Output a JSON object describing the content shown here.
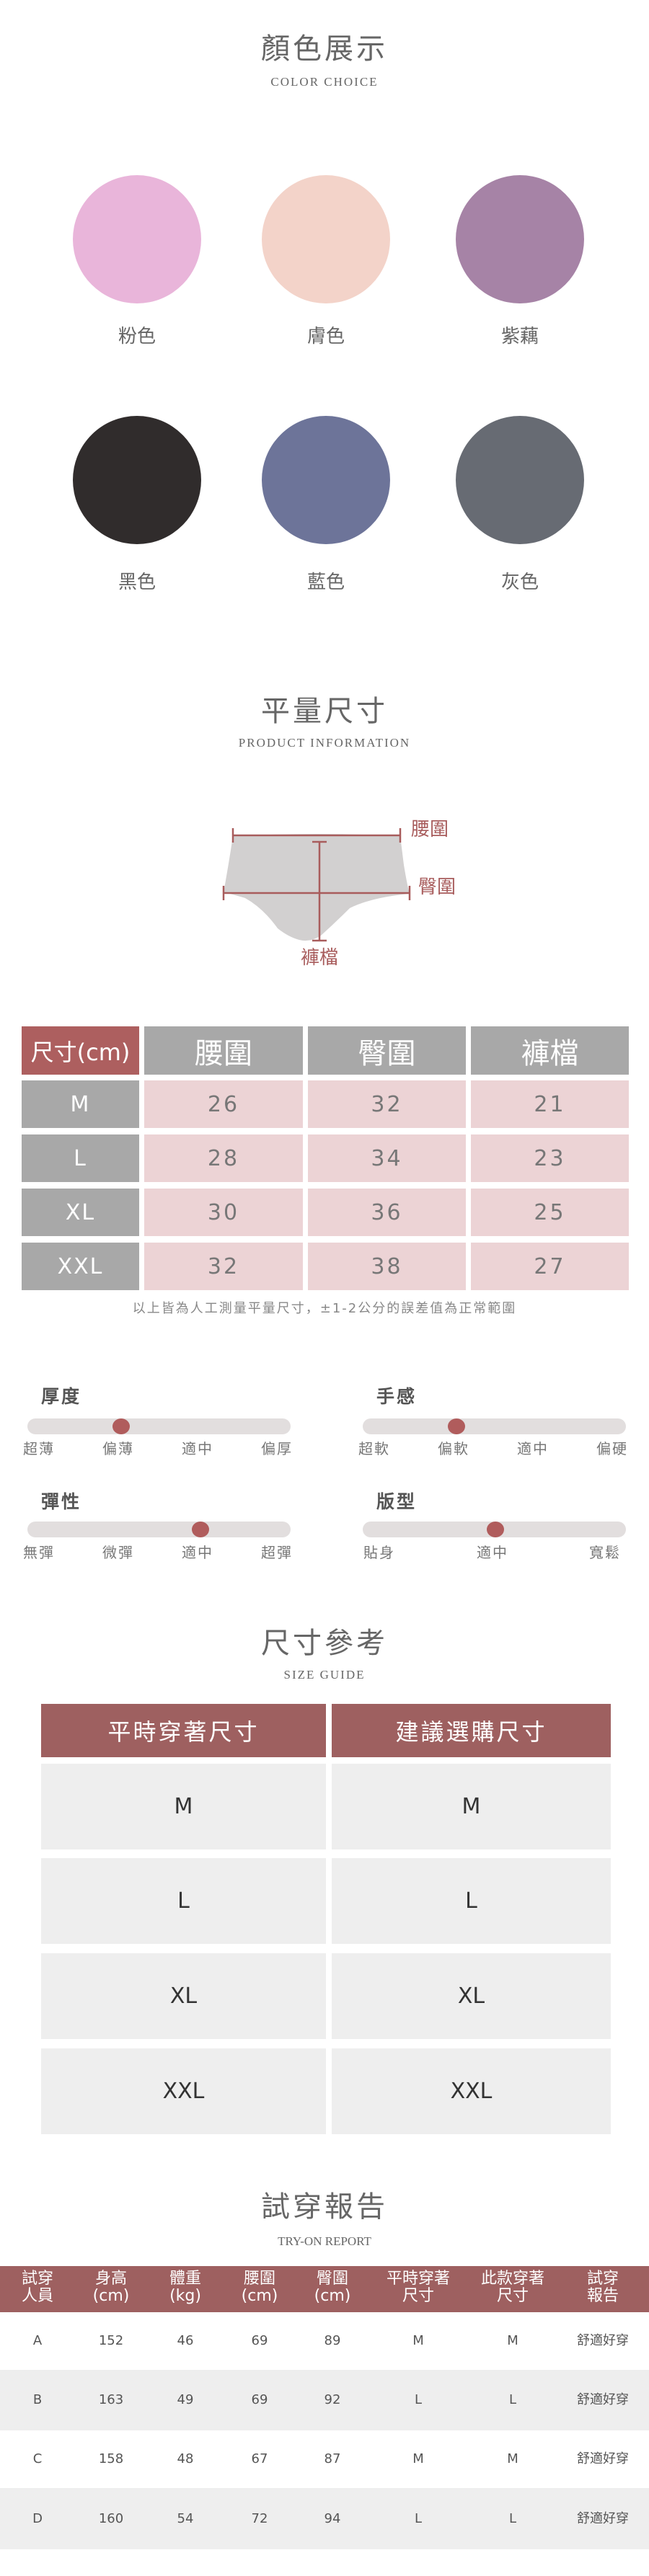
{
  "colors_section": {
    "title": "顏色展示",
    "subtitle": "COLOR CHOICE",
    "swatches": [
      {
        "label": "粉色",
        "color": "#e9b5da"
      },
      {
        "label": "膚色",
        "color": "#f3d3c9"
      },
      {
        "label": "紫藕",
        "color": "#a683a6"
      },
      {
        "label": "黑色",
        "color": "#302c2c"
      },
      {
        "label": "藍色",
        "color": "#6d7499"
      },
      {
        "label": "灰色",
        "color": "#676b73"
      }
    ]
  },
  "product_info": {
    "title": "平量尺寸",
    "subtitle": "PRODUCT INFORMATION",
    "diagram": {
      "waist": "腰圍",
      "hip": "臀圍",
      "rise": "褲檔"
    },
    "table": {
      "corner": "尺寸(cm)",
      "headers": [
        "腰圍",
        "臀圍",
        "褲檔"
      ],
      "rows": [
        {
          "size": "M",
          "values": [
            "26",
            "32",
            "21"
          ]
        },
        {
          "size": "L",
          "values": [
            "28",
            "34",
            "23"
          ]
        },
        {
          "size": "XL",
          "values": [
            "30",
            "36",
            "25"
          ]
        },
        {
          "size": "XXL",
          "values": [
            "32",
            "38",
            "27"
          ]
        }
      ]
    },
    "note": "以上皆為人工測量平量尺寸，±1-2公分的誤差值為正常範圍"
  },
  "features": [
    {
      "name": "厚度",
      "labels": [
        "超薄",
        "偏薄",
        "適中",
        "偏厚"
      ],
      "selected": "偏薄"
    },
    {
      "name": "手感",
      "labels": [
        "超軟",
        "偏軟",
        "適中",
        "偏硬"
      ],
      "selected": "偏軟"
    },
    {
      "name": "彈性",
      "labels": [
        "無彈",
        "微彈",
        "適中",
        "超彈"
      ],
      "selected": "適中"
    },
    {
      "name": "版型",
      "labels": [
        "貼身",
        "適中",
        "寬鬆"
      ],
      "selected": "適中"
    }
  ],
  "accent_color": "#ad5f5f",
  "size_guide": {
    "title": "尺寸參考",
    "subtitle": "SIZE GUIDE",
    "headers": [
      "平時穿著尺寸",
      "建議選購尺寸"
    ],
    "rows": [
      [
        "M",
        "M"
      ],
      [
        "L",
        "L"
      ],
      [
        "XL",
        "XL"
      ],
      [
        "XXL",
        "XXL"
      ]
    ]
  },
  "tryon": {
    "title": "試穿報告",
    "subtitle": "TRY-ON REPORT",
    "headers": [
      [
        "試穿",
        "人員"
      ],
      [
        "身高",
        "(cm)"
      ],
      [
        "體重",
        "(kg)"
      ],
      [
        "腰圍",
        "(cm)"
      ],
      [
        "臀圍",
        "(cm)"
      ],
      [
        "平時穿著",
        "尺寸"
      ],
      [
        "此款穿著",
        "尺寸"
      ],
      [
        "試穿",
        "報告"
      ]
    ],
    "rows": [
      [
        "A",
        "152",
        "46",
        "69",
        "89",
        "M",
        "M",
        "舒適好穿"
      ],
      [
        "B",
        "163",
        "49",
        "69",
        "92",
        "L",
        "L",
        "舒適好穿"
      ],
      [
        "C",
        "158",
        "48",
        "67",
        "87",
        "M",
        "M",
        "舒適好穿"
      ],
      [
        "D",
        "160",
        "54",
        "72",
        "94",
        "L",
        "L",
        "舒適好穿"
      ]
    ]
  }
}
